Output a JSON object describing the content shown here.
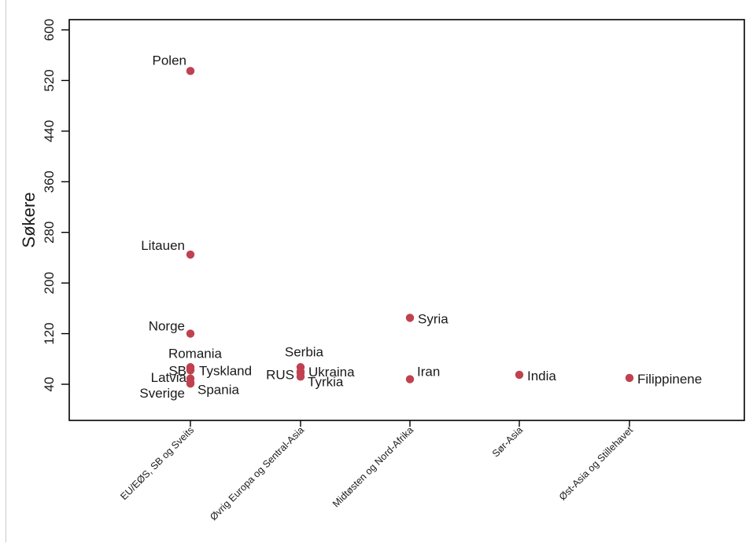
{
  "chart_data": {
    "type": "scatter",
    "ylabel": "Søkere",
    "xlabel": "",
    "title": "",
    "ylim": [
      0,
      620
    ],
    "yticks": [
      40,
      120,
      200,
      280,
      360,
      440,
      520,
      600
    ],
    "categories": [
      "EU/EØS, SB og Sveits",
      "Øvrig Europa og Sentral-Asia",
      "Midtøsten og Nord-Afrika",
      "Sør-Asia",
      "Øst-Asia og Stillehavet"
    ],
    "marker_color": "#c0414f",
    "grid": false,
    "points": [
      {
        "label": "Polen",
        "category": "EU/EØS, SB og Sveits",
        "value": 535
      },
      {
        "label": "Litauen",
        "category": "EU/EØS, SB og Sveits",
        "value": 245
      },
      {
        "label": "Norge",
        "category": "EU/EØS, SB og Sveits",
        "value": 120
      },
      {
        "label": "Romania",
        "category": "EU/EØS, SB og Sveits",
        "value": 67
      },
      {
        "label": "SB",
        "category": "EU/EØS, SB og Sveits",
        "value": 63
      },
      {
        "label": "Tyskland",
        "category": "EU/EØS, SB og Sveits",
        "value": 62
      },
      {
        "label": "Latvia",
        "category": "EU/EØS, SB og Sveits",
        "value": 49
      },
      {
        "label": "Sverige",
        "category": "EU/EØS, SB og Sveits",
        "value": 41
      },
      {
        "label": "Spania",
        "category": "EU/EØS, SB og Sveits",
        "value": 43
      },
      {
        "label": "Serbia",
        "category": "Øvrig Europa og Sentral-Asia",
        "value": 67
      },
      {
        "label": "Ukraina",
        "category": "Øvrig Europa og Sentral-Asia",
        "value": 60
      },
      {
        "label": "RUS",
        "category": "Øvrig Europa og Sentral-Asia",
        "value": 58
      },
      {
        "label": "Tyrkia",
        "category": "Øvrig Europa og Sentral-Asia",
        "value": 52
      },
      {
        "label": "Syria",
        "category": "Midtøsten og Nord-Afrika",
        "value": 145
      },
      {
        "label": "Iran",
        "category": "Midtøsten og Nord-Afrika",
        "value": 48
      },
      {
        "label": "India",
        "category": "Sør-Asia",
        "value": 55
      },
      {
        "label": "Filippinene",
        "category": "Øst-Asia og Stillehavet",
        "value": 50
      }
    ]
  }
}
